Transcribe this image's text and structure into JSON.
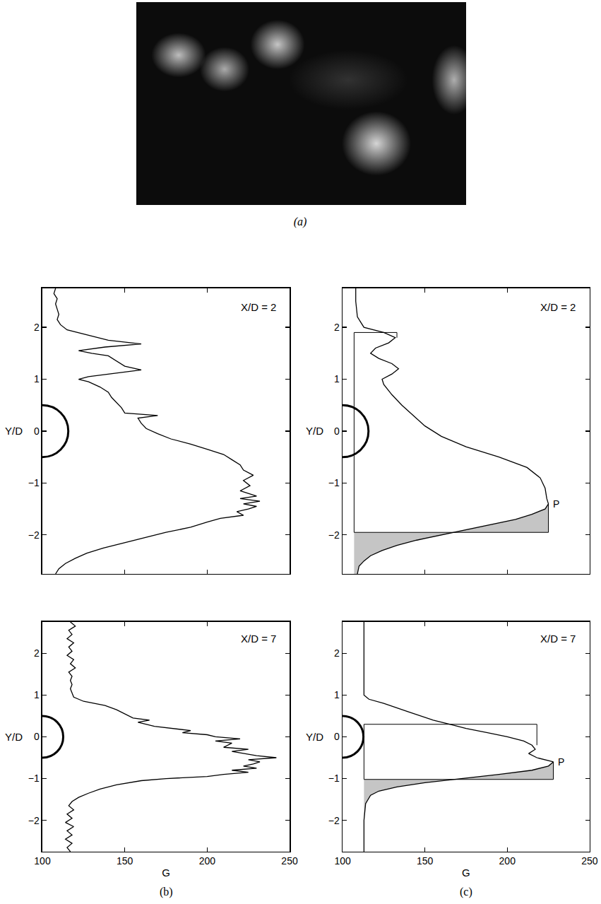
{
  "photo": {
    "label": "(a)"
  },
  "chart_data": [
    {
      "type": "line",
      "color": "black",
      "annotation": "X/D = 2",
      "y_label": "Y/D",
      "tick_labels": "y",
      "xlim": [
        100,
        250
      ],
      "xticks": [
        100,
        150,
        200,
        250
      ],
      "ylim": [
        -2.75,
        2.75
      ],
      "yticks": [
        -2,
        -1,
        0,
        1,
        2
      ],
      "cylinder": {
        "center": 0,
        "radius": 0.5
      },
      "x": [
        108,
        107,
        109,
        108,
        109,
        110,
        109,
        111,
        115,
        128,
        140,
        160,
        138,
        122,
        130,
        140,
        145,
        150,
        160,
        145,
        128,
        122,
        128,
        135,
        140,
        142,
        145,
        148,
        150,
        170,
        158,
        160,
        163,
        170,
        178,
        190,
        200,
        210,
        215,
        220,
        222,
        228,
        222,
        226,
        220,
        230,
        220,
        232,
        222,
        230,
        225,
        218,
        222,
        208,
        200,
        190,
        175,
        162,
        150,
        137,
        127,
        120,
        114,
        110,
        108
      ],
      "y": [
        2.75,
        2.65,
        2.55,
        2.45,
        2.35,
        2.25,
        2.15,
        2.05,
        1.95,
        1.85,
        1.75,
        1.68,
        1.62,
        1.55,
        1.5,
        1.45,
        1.35,
        1.25,
        1.18,
        1.12,
        1.05,
        1.0,
        0.95,
        0.85,
        0.75,
        0.65,
        0.55,
        0.45,
        0.35,
        0.3,
        0.25,
        0.15,
        0.05,
        -0.05,
        -0.15,
        -0.25,
        -0.35,
        -0.45,
        -0.55,
        -0.65,
        -0.75,
        -0.85,
        -0.95,
        -1.05,
        -1.15,
        -1.25,
        -1.3,
        -1.35,
        -1.4,
        -1.45,
        -1.5,
        -1.55,
        -1.62,
        -1.68,
        -1.75,
        -1.85,
        -1.95,
        -2.05,
        -2.15,
        -2.25,
        -2.35,
        -2.45,
        -2.55,
        -2.65,
        -2.75
      ]
    },
    {
      "type": "line",
      "color": "black",
      "annotation": "X/D = 7",
      "y_label": "Y/D",
      "x_label": "G",
      "panel_label": "(b)",
      "tick_labels": true,
      "xlim": [
        100,
        250
      ],
      "xticks": [
        100,
        150,
        200,
        250
      ],
      "ylim": [
        -2.75,
        2.75
      ],
      "yticks": [
        -2,
        -1,
        0,
        1,
        2
      ],
      "cylinder": {
        "center": 0,
        "radius": 0.5
      },
      "x": [
        117,
        120,
        116,
        118,
        115,
        119,
        116,
        118,
        115,
        119,
        117,
        120,
        116,
        118,
        117,
        118,
        117,
        118,
        119,
        125,
        138,
        145,
        150,
        155,
        165,
        158,
        168,
        178,
        190,
        185,
        200,
        205,
        220,
        205,
        215,
        210,
        225,
        215,
        230,
        242,
        225,
        232,
        228,
        222,
        230,
        215,
        225,
        210,
        200,
        175,
        160,
        145,
        135,
        128,
        122,
        118,
        116,
        119,
        115,
        118,
        114,
        119,
        115,
        118,
        114,
        118,
        115,
        117
      ],
      "y": [
        2.75,
        2.65,
        2.55,
        2.45,
        2.35,
        2.25,
        2.15,
        2.05,
        1.95,
        1.85,
        1.75,
        1.65,
        1.55,
        1.45,
        1.35,
        1.25,
        1.15,
        1.05,
        0.95,
        0.85,
        0.75,
        0.65,
        0.55,
        0.45,
        0.4,
        0.35,
        0.25,
        0.2,
        0.15,
        0.1,
        0.05,
        0.0,
        -0.05,
        -0.1,
        -0.15,
        -0.25,
        -0.3,
        -0.35,
        -0.45,
        -0.5,
        -0.55,
        -0.6,
        -0.65,
        -0.7,
        -0.75,
        -0.8,
        -0.85,
        -0.9,
        -0.95,
        -1.0,
        -1.05,
        -1.15,
        -1.25,
        -1.35,
        -1.45,
        -1.55,
        -1.65,
        -1.75,
        -1.85,
        -1.95,
        -2.05,
        -2.15,
        -2.25,
        -2.35,
        -2.45,
        -2.55,
        -2.65,
        -2.75
      ]
    },
    {
      "type": "line",
      "color": "black",
      "annotation": "X/D = 2",
      "y_label": "Y/D",
      "tick_labels": "y",
      "xlim": [
        100,
        250
      ],
      "xticks": [
        100,
        150,
        200,
        250
      ],
      "ylim": [
        -2.75,
        2.75
      ],
      "yticks": [
        -2,
        -1,
        0,
        1,
        2
      ],
      "cylinder": {
        "center": 0,
        "radius": 0.5
      },
      "x": [
        108,
        108,
        109,
        113,
        125,
        132,
        128,
        120,
        117,
        122,
        130,
        134,
        130,
        124,
        125,
        130,
        136,
        143,
        150,
        160,
        175,
        195,
        212,
        220,
        223,
        224,
        225,
        223,
        215,
        205,
        190,
        175,
        160,
        145,
        133,
        124,
        117,
        113,
        110,
        109
      ],
      "y": [
        2.75,
        2.5,
        2.2,
        2.0,
        1.9,
        1.8,
        1.7,
        1.6,
        1.5,
        1.4,
        1.3,
        1.2,
        1.1,
        1.0,
        0.9,
        0.7,
        0.5,
        0.3,
        0.1,
        -0.1,
        -0.3,
        -0.5,
        -0.7,
        -0.9,
        -1.1,
        -1.3,
        -1.4,
        -1.5,
        -1.6,
        -1.7,
        -1.8,
        -1.9,
        -2.0,
        -2.1,
        -2.2,
        -2.3,
        -2.4,
        -2.5,
        -2.6,
        -2.75
      ],
      "construction": {
        "base": 107,
        "top": {
          "g": 133,
          "y": 1.9,
          "y_end": 1.8
        },
        "bottom": {
          "g": 225,
          "y": -1.95,
          "y_end": -1.4
        },
        "peak_label": "P"
      }
    },
    {
      "type": "line",
      "color": "black",
      "annotation": "X/D = 7",
      "y_label": "Y/D",
      "x_label": "G",
      "panel_label": "(c)",
      "tick_labels": true,
      "xlim": [
        100,
        250
      ],
      "xticks": [
        100,
        150,
        200,
        250
      ],
      "ylim": [
        -2.75,
        2.75
      ],
      "yticks": [
        -2,
        -1,
        0,
        1,
        2
      ],
      "cylinder": {
        "center": 0,
        "radius": 0.5
      },
      "x": [
        113,
        113,
        113,
        116,
        125,
        140,
        155,
        165,
        175,
        188,
        200,
        210,
        215,
        217,
        213,
        218,
        228,
        225,
        215,
        195,
        172,
        150,
        133,
        122,
        117,
        114,
        113,
        113
      ],
      "y": [
        2.75,
        1.5,
        1.0,
        0.9,
        0.8,
        0.6,
        0.4,
        0.3,
        0.2,
        0.1,
        0.0,
        -0.1,
        -0.2,
        -0.3,
        -0.4,
        -0.5,
        -0.6,
        -0.7,
        -0.8,
        -0.9,
        -1.0,
        -1.1,
        -1.2,
        -1.3,
        -1.4,
        -1.6,
        -2.0,
        -2.75
      ],
      "construction": {
        "base": 113,
        "top": {
          "g": 218,
          "y": 0.3,
          "y_end": -0.2
        },
        "bottom": {
          "g": 228,
          "y": -1.02,
          "y_end": -0.6
        },
        "peak_label": "P"
      }
    }
  ]
}
